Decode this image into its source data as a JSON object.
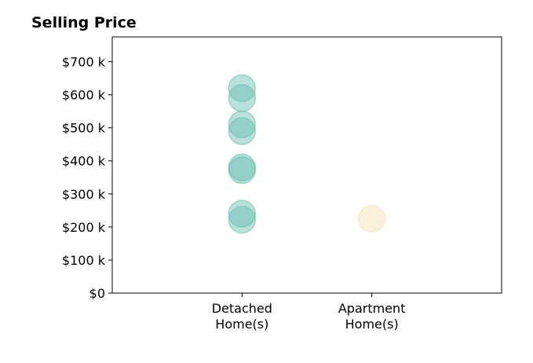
{
  "chart_data": {
    "type": "scatter",
    "title": "Selling Price",
    "xlabel": "",
    "ylabel": "",
    "categories": [
      {
        "line1": "Detached",
        "line2": "Home(s)"
      },
      {
        "line1": "Apartment",
        "line2": "Home(s)"
      }
    ],
    "xlim": [
      -1,
      2
    ],
    "ylim": [
      0,
      775000
    ],
    "yticks": [
      {
        "value": 0,
        "label": "$0"
      },
      {
        "value": 100000,
        "label": "$100 k"
      },
      {
        "value": 200000,
        "label": "$200 k"
      },
      {
        "value": 300000,
        "label": "$300 k"
      },
      {
        "value": 400000,
        "label": "$400 k"
      },
      {
        "value": 500000,
        "label": "$500 k"
      },
      {
        "value": 600000,
        "label": "$600 k"
      },
      {
        "value": 700000,
        "label": "$700 k"
      }
    ],
    "series": [
      {
        "color": "#66bdb1",
        "category_index": 0,
        "values": [
          620000,
          590000,
          510000,
          490000,
          380000,
          372000,
          240000,
          222000
        ]
      },
      {
        "color": "#f7deb0",
        "category_index": 1,
        "values": [
          225000
        ]
      }
    ],
    "grid": false,
    "legend": "none"
  }
}
